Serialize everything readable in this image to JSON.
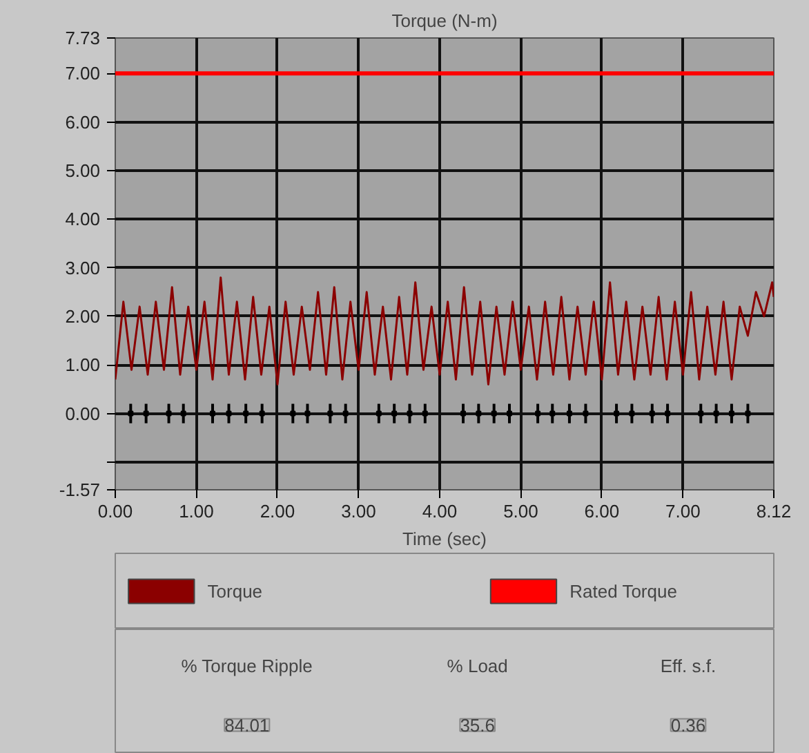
{
  "chart_data": {
    "type": "line",
    "title": "Torque (N-m)",
    "xlabel": "Time (sec)",
    "xlim": [
      0,
      8.12
    ],
    "xticks": [
      {
        "value": 0,
        "label": "0.00"
      },
      {
        "value": 1,
        "label": "1.00"
      },
      {
        "value": 2,
        "label": "2.00"
      },
      {
        "value": 3,
        "label": "3.00"
      },
      {
        "value": 4,
        "label": "4.00"
      },
      {
        "value": 5,
        "label": "5.00"
      },
      {
        "value": 6,
        "label": "6.00"
      },
      {
        "value": 7,
        "label": "7.00"
      },
      {
        "value": 8.12,
        "label": "8.12"
      }
    ],
    "ylim": [
      -1.57,
      7.73
    ],
    "yticks": [
      {
        "value": -1.57,
        "label": "-1.57"
      },
      {
        "value": -1,
        "label": null
      },
      {
        "value": 0,
        "label": "0.00"
      },
      {
        "value": 1,
        "label": "1.00"
      },
      {
        "value": 2,
        "label": "2.00"
      },
      {
        "value": 3,
        "label": "3.00"
      },
      {
        "value": 4,
        "label": "4.00"
      },
      {
        "value": 5,
        "label": "5.00"
      },
      {
        "value": 6,
        "label": "6.00"
      },
      {
        "value": 7,
        "label": "7.00"
      },
      {
        "value": 7.73,
        "label": "7.73"
      }
    ],
    "grid": true,
    "legend": "bottom",
    "series": [
      {
        "name": "Torque",
        "color": "#8b0000",
        "x": [
          0.0,
          0.1,
          0.2,
          0.3,
          0.4,
          0.5,
          0.6,
          0.7,
          0.8,
          0.9,
          1.0,
          1.1,
          1.2,
          1.3,
          1.4,
          1.5,
          1.6,
          1.7,
          1.8,
          1.9,
          2.0,
          2.1,
          2.2,
          2.3,
          2.4,
          2.5,
          2.6,
          2.7,
          2.8,
          2.9,
          3.0,
          3.1,
          3.2,
          3.3,
          3.4,
          3.5,
          3.6,
          3.7,
          3.8,
          3.9,
          4.0,
          4.1,
          4.2,
          4.3,
          4.4,
          4.5,
          4.6,
          4.7,
          4.8,
          4.9,
          5.0,
          5.1,
          5.2,
          5.3,
          5.4,
          5.5,
          5.6,
          5.7,
          5.8,
          5.9,
          6.0,
          6.1,
          6.2,
          6.3,
          6.4,
          6.5,
          6.6,
          6.7,
          6.8,
          6.9,
          7.0,
          7.1,
          7.2,
          7.3,
          7.4,
          7.5,
          7.6,
          7.7,
          7.8,
          7.9,
          8.0,
          8.1,
          8.12
        ],
        "values": [
          0.7,
          2.3,
          0.9,
          2.2,
          0.8,
          2.3,
          0.9,
          2.6,
          0.8,
          2.2,
          0.9,
          2.3,
          0.7,
          2.8,
          0.8,
          2.3,
          0.7,
          2.4,
          0.8,
          2.2,
          0.6,
          2.3,
          0.8,
          2.2,
          0.9,
          2.5,
          0.8,
          2.6,
          0.7,
          2.3,
          0.9,
          2.5,
          0.8,
          2.2,
          0.7,
          2.4,
          0.8,
          2.7,
          0.9,
          2.2,
          0.8,
          2.3,
          0.7,
          2.6,
          0.8,
          2.3,
          0.6,
          2.2,
          0.8,
          2.3,
          0.9,
          2.2,
          0.7,
          2.3,
          0.8,
          2.4,
          0.7,
          2.2,
          0.8,
          2.3,
          0.7,
          2.7,
          0.8,
          2.3,
          0.7,
          2.2,
          0.8,
          2.4,
          0.7,
          2.3,
          0.8,
          2.5,
          0.7,
          2.2,
          0.8,
          2.3,
          0.7,
          2.2,
          1.6,
          2.5,
          2.0,
          2.7,
          2.4
        ]
      },
      {
        "name": "Rated Torque",
        "color": "#ff0000",
        "x": [
          0,
          8.12
        ],
        "values": [
          7,
          7
        ]
      },
      {
        "type": "scatter",
        "marker": "square",
        "color": "#000000",
        "x": [
          0.19,
          0.38,
          0.66,
          0.84,
          1.2,
          1.4,
          1.61,
          1.81,
          2.19,
          2.37,
          2.65,
          2.84,
          3.25,
          3.44,
          3.63,
          3.82,
          4.29,
          4.48,
          4.67,
          4.86,
          5.21,
          5.39,
          5.6,
          5.8,
          6.18,
          6.37,
          6.62,
          6.81,
          7.22,
          7.41,
          7.6,
          7.8
        ],
        "values": [
          0,
          0,
          0,
          0,
          0,
          0,
          0,
          0,
          0,
          0,
          0,
          0,
          0,
          0,
          0,
          0,
          0,
          0,
          0,
          0,
          0,
          0,
          0,
          0,
          0,
          0,
          0,
          0,
          0,
          0,
          0,
          0
        ],
        "errors": [
          0.2,
          0.2,
          0.2,
          0.2,
          0.2,
          0.2,
          0.2,
          0.2,
          0.2,
          0.2,
          0.2,
          0.2,
          0.2,
          0.2,
          0.2,
          0.2,
          0.2,
          0.2,
          0.2,
          0.2,
          0.2,
          0.2,
          0.2,
          0.2,
          0.2,
          0.2,
          0.2,
          0.2,
          0.2,
          0.2,
          0.2,
          0.2
        ]
      }
    ],
    "annotations": [
      "% Torque Ripple",
      "84.01",
      "% Load",
      "35.6",
      "Eff. s.f.",
      "0.36"
    ]
  }
}
